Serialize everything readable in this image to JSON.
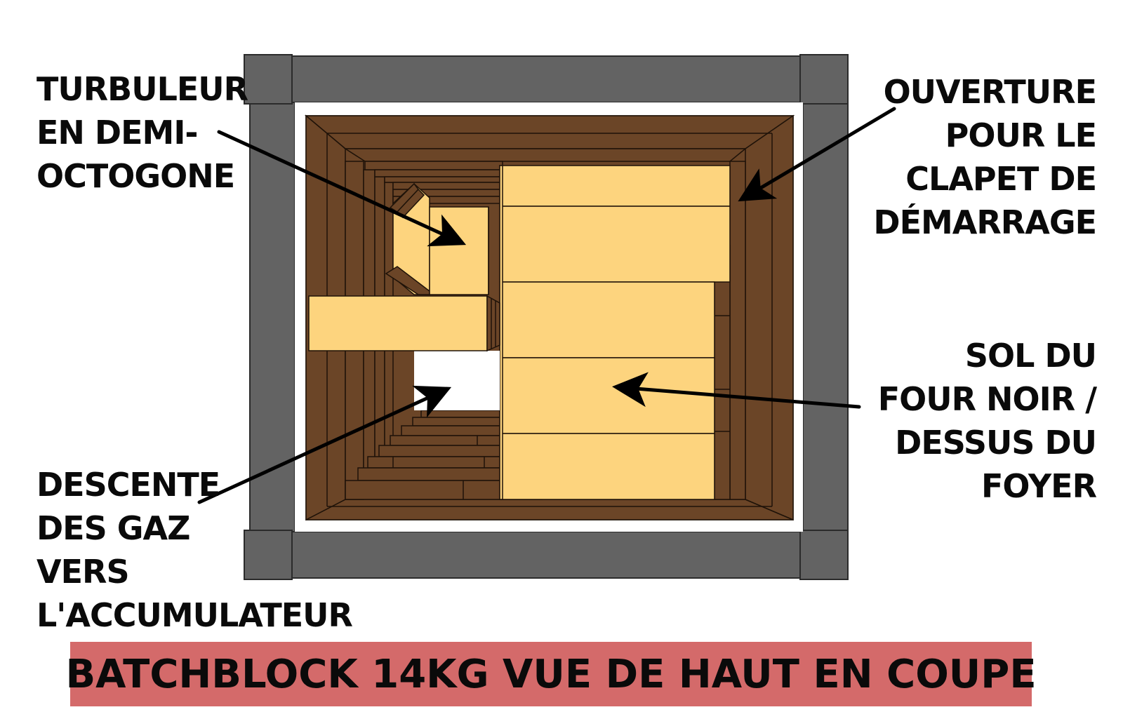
{
  "labels": {
    "turbulator": "TURBULEUR\nEN DEMI-\nOCTOGONE",
    "opening": "OUVERTURE\nPOUR LE\nCLAPET DE\nDÉMARRAGE",
    "floor": "SOL DU\nFOUR NOIR /\nDESSUS DU\nFOYER",
    "descent": "DESCENTE\nDES GAZ\nVERS\nL'ACCUMULATEUR"
  },
  "title": "BATCHBLOCK 14KG VUE DE HAUT EN COUPE",
  "colors": {
    "frame": "#636363",
    "brick_dark": "#6b4527",
    "brick_light": "#fdd47e",
    "banner": "#d46a6a",
    "arrow": "#000000"
  }
}
